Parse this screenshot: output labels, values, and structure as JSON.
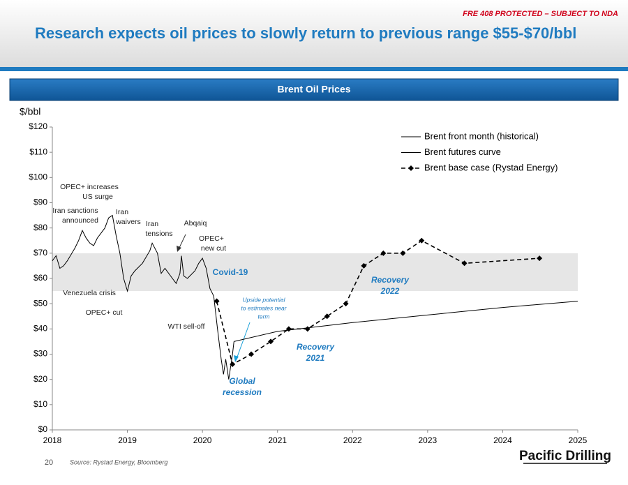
{
  "header": {
    "notice": "FRE 408 PROTECTED – SUBJECT TO NDA",
    "title": "Research expects oil prices to slowly return to previous range $55-$70/bbl"
  },
  "panel_title": "Brent Oil Prices",
  "chart_data": {
    "type": "line",
    "y_label": "$/bbl",
    "xlim": [
      2018,
      2025
    ],
    "xticks": [
      2018,
      2019,
      2020,
      2021,
      2022,
      2023,
      2024,
      2025
    ],
    "ylim": [
      0,
      120
    ],
    "yticks": [
      {
        "value": 0,
        "label": "$0"
      },
      {
        "value": 10,
        "label": "$10"
      },
      {
        "value": 20,
        "label": "$20"
      },
      {
        "value": 30,
        "label": "$30"
      },
      {
        "value": 40,
        "label": "$40"
      },
      {
        "value": 50,
        "label": "$50"
      },
      {
        "value": 60,
        "label": "$60"
      },
      {
        "value": 70,
        "label": "$70"
      },
      {
        "value": 80,
        "label": "$80"
      },
      {
        "value": 90,
        "label": "$90"
      },
      {
        "value": 100,
        "label": "$100"
      },
      {
        "value": 110,
        "label": "$110"
      },
      {
        "value": 120,
        "label": "$120"
      }
    ],
    "shaded_range": [
      55,
      70
    ],
    "shaded_color": "#e6e6e6",
    "legend": "top-right",
    "series": [
      {
        "name": "Brent front month (historical)",
        "color": "#000000",
        "style": "solid",
        "x": [
          2018.0,
          2018.05,
          2018.1,
          2018.15,
          2018.2,
          2018.3,
          2018.35,
          2018.4,
          2018.45,
          2018.5,
          2018.55,
          2018.6,
          2018.65,
          2018.7,
          2018.75,
          2018.8,
          2018.85,
          2018.9,
          2018.95,
          2019.0,
          2019.05,
          2019.1,
          2019.2,
          2019.3,
          2019.33,
          2019.4,
          2019.45,
          2019.5,
          2019.6,
          2019.65,
          2019.7,
          2019.72,
          2019.75,
          2019.8,
          2019.9,
          2019.95,
          2020.0,
          2020.05,
          2020.1,
          2020.15,
          2020.2,
          2020.25,
          2020.28,
          2020.31,
          2020.35,
          2020.4,
          2020.42
        ],
        "values": [
          67,
          69,
          64,
          65,
          67,
          72,
          75,
          79,
          76,
          74,
          73,
          76,
          78,
          80,
          84,
          85,
          77,
          70,
          60,
          55,
          61,
          63,
          66,
          71,
          74,
          70,
          62,
          64,
          60,
          58,
          62,
          69,
          61,
          60,
          63,
          66,
          68,
          64,
          56,
          53,
          40,
          28,
          22,
          28,
          20,
          30,
          35
        ]
      },
      {
        "name": "Brent futures curve",
        "color": "#000000",
        "style": "solid",
        "x": [
          2020.42,
          2021,
          2022,
          2023,
          2024,
          2025
        ],
        "values": [
          35,
          39,
          42.5,
          45.5,
          48.5,
          51
        ]
      },
      {
        "name": "Brent base case (Rystad Energy)",
        "color": "#000000",
        "style": "dashed",
        "marker": "diamond",
        "x": [
          2020.19,
          2020.4,
          2020.65,
          2020.91,
          2021.15,
          2021.4,
          2021.66,
          2021.91,
          2022.15,
          2022.41,
          2022.67,
          2022.92,
          2023.49,
          2024.49
        ],
        "values": [
          51,
          26,
          30,
          35,
          40,
          40,
          45,
          50,
          65,
          70,
          70,
          75,
          66,
          68
        ]
      }
    ],
    "annotations": [
      {
        "text": "OPEC+ increases",
        "color": "#222222"
      },
      {
        "text": "US surge",
        "color": "#222222"
      },
      {
        "text": "Iran sanctions",
        "color": "#222222"
      },
      {
        "text": "announced",
        "color": "#222222"
      },
      {
        "text": "Iran",
        "color": "#222222"
      },
      {
        "text": "waivers",
        "color": "#222222"
      },
      {
        "text": "Iran",
        "color": "#222222"
      },
      {
        "text": "tensions",
        "color": "#222222"
      },
      {
        "text": "Abqaiq",
        "color": "#222222"
      },
      {
        "text": "OPEC+",
        "color": "#222222"
      },
      {
        "text": "new cut",
        "color": "#222222"
      },
      {
        "text": "Covid-19",
        "color": "#1f7bc0"
      },
      {
        "text": "Venezuela crisis",
        "color": "#222222"
      },
      {
        "text": "OPEC+ cut",
        "color": "#222222"
      },
      {
        "text": "WTI sell-off",
        "color": "#222222"
      },
      {
        "text": "Upside potential",
        "color": "#1f7bc0"
      },
      {
        "text": "to estimates near",
        "color": "#1f7bc0"
      },
      {
        "text": "term",
        "color": "#1f7bc0"
      },
      {
        "text": "Recovery",
        "color": "#1f7bc0"
      },
      {
        "text": "2022",
        "color": "#1f7bc0"
      },
      {
        "text": "Recovery",
        "color": "#1f7bc0"
      },
      {
        "text": "2021",
        "color": "#1f7bc0"
      },
      {
        "text": "Global",
        "color": "#1f7bc0"
      },
      {
        "text": "recession",
        "color": "#1f7bc0"
      }
    ]
  },
  "footer": {
    "page": "20",
    "source": "Source: Rystad Energy, Bloomberg",
    "logo": "Pacific Drilling"
  }
}
